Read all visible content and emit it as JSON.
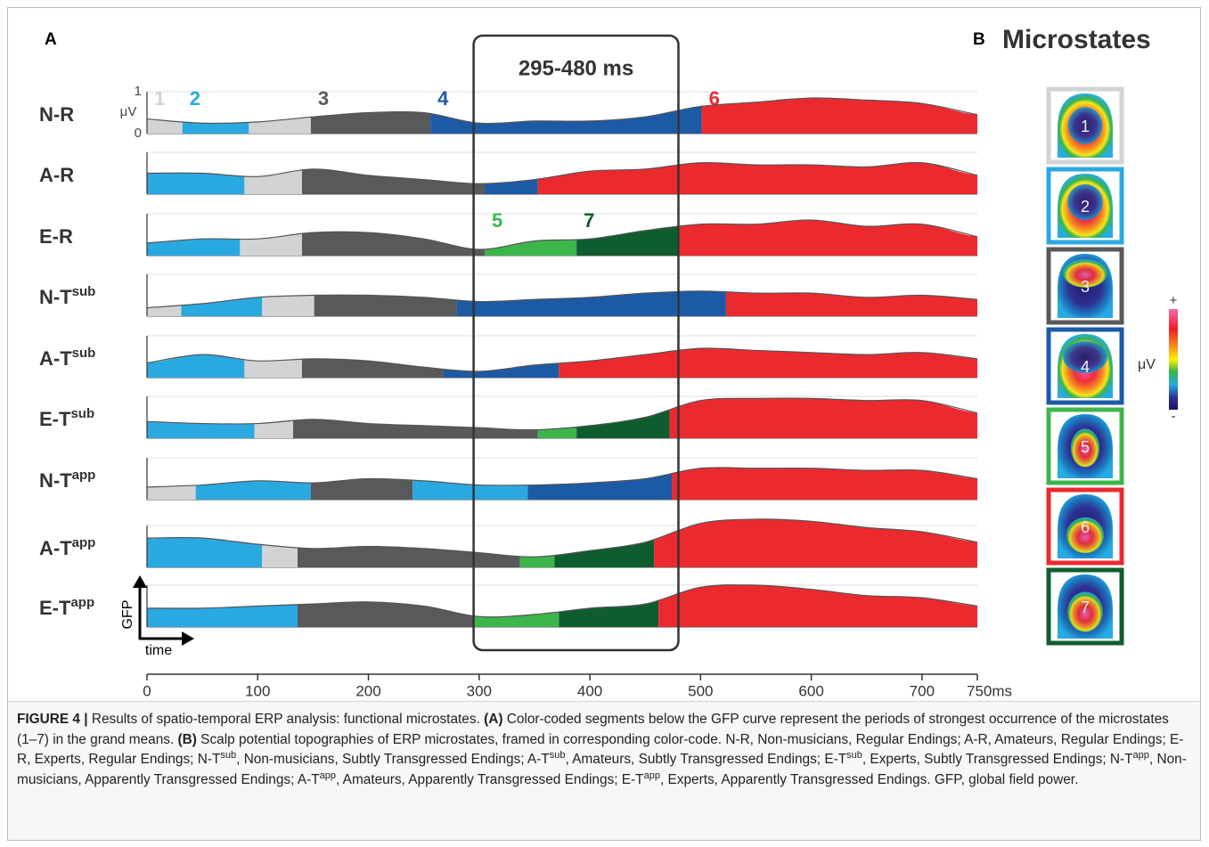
{
  "panel_a": {
    "label": "A",
    "window_label": "295-480 ms",
    "window": [
      295,
      480
    ],
    "xlim": [
      0,
      750
    ],
    "xticks": [
      0,
      100,
      200,
      300,
      400,
      500,
      600,
      700,
      {
        "value": 750,
        "label": "750ms"
      }
    ],
    "ylim": [
      0,
      1
    ],
    "yticks": [
      0,
      1
    ],
    "y_unit": "μV",
    "gfp_label": "GFP",
    "time_label": "time",
    "times": [
      0,
      50,
      100,
      150,
      200,
      250,
      300,
      350,
      400,
      450,
      500,
      550,
      600,
      650,
      700,
      750
    ],
    "rows": [
      {
        "label": "N-R",
        "gfp": [
          0.35,
          0.25,
          0.28,
          0.4,
          0.5,
          0.5,
          0.25,
          0.3,
          0.3,
          0.4,
          0.65,
          0.75,
          0.85,
          0.8,
          0.72,
          0.45
        ],
        "segments": [
          {
            "state": "1",
            "start": 0,
            "end": 32
          },
          {
            "state": "2",
            "start": 32,
            "end": 92
          },
          {
            "state": "1",
            "start": 92,
            "end": 148
          },
          {
            "state": "3",
            "start": 148,
            "end": 256
          },
          {
            "state": "4",
            "start": 256,
            "end": 501
          },
          {
            "state": "6",
            "start": 501,
            "end": 750
          }
        ]
      },
      {
        "label": "A-R",
        "gfp": [
          0.5,
          0.5,
          0.42,
          0.6,
          0.45,
          0.35,
          0.25,
          0.35,
          0.55,
          0.6,
          0.75,
          0.7,
          0.7,
          0.65,
          0.75,
          0.45
        ],
        "segments": [
          {
            "state": "2",
            "start": 0,
            "end": 88
          },
          {
            "state": "1",
            "start": 88,
            "end": 140
          },
          {
            "state": "3",
            "start": 140,
            "end": 305
          },
          {
            "state": "4",
            "start": 305,
            "end": 353
          },
          {
            "state": "6",
            "start": 353,
            "end": 750
          }
        ]
      },
      {
        "label": "E-R",
        "gfp": [
          0.3,
          0.4,
          0.4,
          0.55,
          0.55,
          0.4,
          0.15,
          0.35,
          0.4,
          0.6,
          0.75,
          0.75,
          0.85,
          0.7,
          0.75,
          0.45
        ],
        "segments": [
          {
            "state": "2",
            "start": 0,
            "end": 84
          },
          {
            "state": "1",
            "start": 84,
            "end": 140
          },
          {
            "state": "3",
            "start": 140,
            "end": 305
          },
          {
            "state": "5",
            "start": 305,
            "end": 388
          },
          {
            "state": "7",
            "start": 388,
            "end": 481
          },
          {
            "state": "6",
            "start": 481,
            "end": 750
          }
        ]
      },
      {
        "label": "N-T",
        "sup": "sub",
        "gfp": [
          0.2,
          0.3,
          0.45,
          0.5,
          0.5,
          0.45,
          0.35,
          0.4,
          0.45,
          0.55,
          0.6,
          0.55,
          0.55,
          0.45,
          0.5,
          0.4
        ],
        "segments": [
          {
            "state": "1",
            "start": 0,
            "end": 31
          },
          {
            "state": "2",
            "start": 31,
            "end": 104
          },
          {
            "state": "1",
            "start": 104,
            "end": 151
          },
          {
            "state": "3",
            "start": 151,
            "end": 280
          },
          {
            "state": "4",
            "start": 280,
            "end": 523
          },
          {
            "state": "6",
            "start": 523,
            "end": 750
          }
        ]
      },
      {
        "label": "A-T",
        "sup": "sub",
        "gfp": [
          0.35,
          0.55,
          0.4,
          0.45,
          0.4,
          0.25,
          0.15,
          0.3,
          0.4,
          0.55,
          0.7,
          0.65,
          0.6,
          0.55,
          0.6,
          0.45
        ],
        "segments": [
          {
            "state": "2",
            "start": 0,
            "end": 88
          },
          {
            "state": "1",
            "start": 88,
            "end": 140
          },
          {
            "state": "3",
            "start": 140,
            "end": 268
          },
          {
            "state": "4",
            "start": 268,
            "end": 372
          },
          {
            "state": "6",
            "start": 372,
            "end": 750
          }
        ]
      },
      {
        "label": "E-T",
        "sup": "sub",
        "gfp": [
          0.4,
          0.35,
          0.35,
          0.45,
          0.35,
          0.3,
          0.25,
          0.2,
          0.3,
          0.5,
          0.9,
          0.95,
          0.95,
          0.9,
          0.9,
          0.6
        ],
        "segments": [
          {
            "state": "2",
            "start": 0,
            "end": 97
          },
          {
            "state": "1",
            "start": 97,
            "end": 132
          },
          {
            "state": "3",
            "start": 132,
            "end": 353
          },
          {
            "state": "5",
            "start": 353,
            "end": 388
          },
          {
            "state": "7",
            "start": 388,
            "end": 472
          },
          {
            "state": "6",
            "start": 472,
            "end": 750
          }
        ]
      },
      {
        "label": "N-T",
        "sup": "app",
        "gfp": [
          0.3,
          0.35,
          0.45,
          0.4,
          0.5,
          0.45,
          0.35,
          0.35,
          0.4,
          0.5,
          0.75,
          0.75,
          0.75,
          0.7,
          0.7,
          0.5
        ],
        "segments": [
          {
            "state": "1",
            "start": 0,
            "end": 44
          },
          {
            "state": "2",
            "start": 44,
            "end": 148
          },
          {
            "state": "3",
            "start": 148,
            "end": 240
          },
          {
            "state": "2",
            "start": 240,
            "end": 344
          },
          {
            "state": "4",
            "start": 344,
            "end": 474
          },
          {
            "state": "6",
            "start": 474,
            "end": 750
          }
        ]
      },
      {
        "label": "A-T",
        "sup": "app",
        "gfp": [
          0.7,
          0.7,
          0.55,
          0.45,
          0.5,
          0.45,
          0.35,
          0.25,
          0.4,
          0.6,
          1.05,
          1.15,
          1.1,
          0.95,
          0.85,
          0.6
        ],
        "segments": [
          {
            "state": "2",
            "start": 0,
            "end": 104
          },
          {
            "state": "1",
            "start": 104,
            "end": 136
          },
          {
            "state": "3",
            "start": 136,
            "end": 337
          },
          {
            "state": "5",
            "start": 337,
            "end": 368
          },
          {
            "state": "7",
            "start": 368,
            "end": 458
          },
          {
            "state": "6",
            "start": 458,
            "end": 750
          }
        ]
      },
      {
        "label": "E-T",
        "sup": "app",
        "gfp": [
          0.45,
          0.45,
          0.5,
          0.55,
          0.6,
          0.5,
          0.25,
          0.3,
          0.45,
          0.55,
          0.95,
          1.0,
          0.9,
          0.75,
          0.7,
          0.5
        ],
        "segments": [
          {
            "state": "2",
            "start": 0,
            "end": 136
          },
          {
            "state": "3",
            "start": 136,
            "end": 296
          },
          {
            "state": "5",
            "start": 296,
            "end": 372
          },
          {
            "state": "7",
            "start": 372,
            "end": 462
          },
          {
            "state": "6",
            "start": 462,
            "end": 750
          }
        ]
      }
    ]
  },
  "panel_b": {
    "label": "B",
    "title": "Microstates",
    "colorbar_label": "μV",
    "colorbar_max": "+",
    "colorbar_min": "-",
    "microstates": [
      {
        "label": "1",
        "color": "#d1d3d5"
      },
      {
        "label": "2",
        "color": "#2aa9e0"
      },
      {
        "label": "3",
        "color": "#58595b"
      },
      {
        "label": "4",
        "color": "#1c5aa5"
      },
      {
        "label": "5",
        "color": "#3db54a"
      },
      {
        "label": "6",
        "color": "#eb2a2f"
      },
      {
        "label": "7",
        "color": "#0f5d2f"
      }
    ]
  },
  "caption": [
    {
      "text": "FIGURE 4 |",
      "style": "bold"
    },
    {
      "text": " Results of spatio-temporal ERP analysis: functional microstates. "
    },
    {
      "text": "(A)",
      "style": "bold"
    },
    {
      "text": " Color-coded segments below the GFP curve represent the periods of strongest occurrence of the microstates (1–7) in the grand means. "
    },
    {
      "text": "(B)",
      "style": "bold"
    },
    {
      "text": " Scalp potential topographies of ERP microstates, framed in corresponding color-code. N-R, Non-musicians, Regular Endings; A-R, Amateurs, Regular Endings; E-R, Experts, Regular Endings; N-T"
    },
    {
      "text": "sub",
      "style": "sup"
    },
    {
      "text": ", Non-musicians, Subtly Transgressed Endings; A-T"
    },
    {
      "text": "sub",
      "style": "sup"
    },
    {
      "text": ", Amateurs, Subtly Transgressed Endings; E-T"
    },
    {
      "text": "sub",
      "style": "sup"
    },
    {
      "text": ", Experts, Subtly Transgressed Endings; N-T"
    },
    {
      "text": "app",
      "style": "sup"
    },
    {
      "text": ", Non-musicians, Apparently Transgressed Endings; A-T"
    },
    {
      "text": "app",
      "style": "sup"
    },
    {
      "text": ", Amateurs, Apparently Transgressed Endings; E-T"
    },
    {
      "text": "app",
      "style": "sup"
    },
    {
      "text": ", Experts, Apparently Transgressed Endings. GFP, global field power."
    }
  ]
}
